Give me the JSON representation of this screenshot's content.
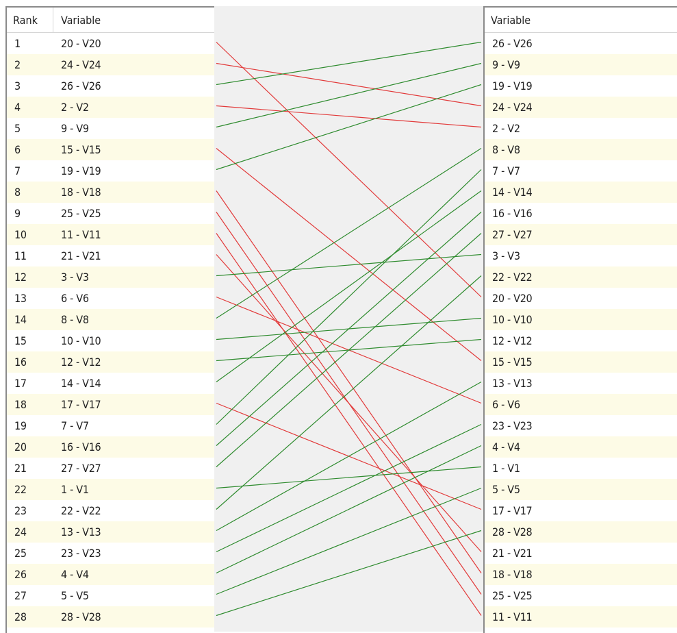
{
  "left_table": {
    "rank_header": "Rank",
    "variable_header": "Variable",
    "rows": [
      {
        "rank": "1",
        "variable": "20 - V20"
      },
      {
        "rank": "2",
        "variable": "24 - V24"
      },
      {
        "rank": "3",
        "variable": "26 - V26"
      },
      {
        "rank": "4",
        "variable": "2 - V2"
      },
      {
        "rank": "5",
        "variable": "9 - V9"
      },
      {
        "rank": "6",
        "variable": "15 - V15"
      },
      {
        "rank": "7",
        "variable": "19 - V19"
      },
      {
        "rank": "8",
        "variable": "18 - V18"
      },
      {
        "rank": "9",
        "variable": "25 - V25"
      },
      {
        "rank": "10",
        "variable": "11 - V11"
      },
      {
        "rank": "11",
        "variable": "21 - V21"
      },
      {
        "rank": "12",
        "variable": "3 - V3"
      },
      {
        "rank": "13",
        "variable": "6 - V6"
      },
      {
        "rank": "14",
        "variable": "8 - V8"
      },
      {
        "rank": "15",
        "variable": "10 - V10"
      },
      {
        "rank": "16",
        "variable": "12 - V12"
      },
      {
        "rank": "17",
        "variable": "14 - V14"
      },
      {
        "rank": "18",
        "variable": "17 - V17"
      },
      {
        "rank": "19",
        "variable": "7 - V7"
      },
      {
        "rank": "20",
        "variable": "16 - V16"
      },
      {
        "rank": "21",
        "variable": "27 - V27"
      },
      {
        "rank": "22",
        "variable": "1 - V1"
      },
      {
        "rank": "23",
        "variable": "22 - V22"
      },
      {
        "rank": "24",
        "variable": "13 - V13"
      },
      {
        "rank": "25",
        "variable": "23 - V23"
      },
      {
        "rank": "26",
        "variable": "4 - V4"
      },
      {
        "rank": "27",
        "variable": "5 - V5"
      },
      {
        "rank": "28",
        "variable": "28 - V28"
      }
    ]
  },
  "right_table": {
    "variable_header": "Variable",
    "rows": [
      {
        "variable": "26 - V26"
      },
      {
        "variable": "9 - V9"
      },
      {
        "variable": "19 - V19"
      },
      {
        "variable": "24 - V24"
      },
      {
        "variable": "2 - V2"
      },
      {
        "variable": "8 - V8"
      },
      {
        "variable": "7 - V7"
      },
      {
        "variable": "14 - V14"
      },
      {
        "variable": "16 - V16"
      },
      {
        "variable": "27 - V27"
      },
      {
        "variable": "3 - V3"
      },
      {
        "variable": "22 - V22"
      },
      {
        "variable": "20 - V20"
      },
      {
        "variable": "10 - V10"
      },
      {
        "variable": "12 - V12"
      },
      {
        "variable": "15 - V15"
      },
      {
        "variable": "13 - V13"
      },
      {
        "variable": "6 - V6"
      },
      {
        "variable": "23 - V23"
      },
      {
        "variable": "4 - V4"
      },
      {
        "variable": "1 - V1"
      },
      {
        "variable": "5 - V5"
      },
      {
        "variable": "17 - V17"
      },
      {
        "variable": "28 - V28"
      },
      {
        "variable": "21 - V21"
      },
      {
        "variable": "18 - V18"
      },
      {
        "variable": "25 - V25"
      },
      {
        "variable": "11 - V11"
      }
    ]
  },
  "colors": {
    "rank_up": "#2e8b2e",
    "rank_down": "#e23a3a",
    "middle_background": "#f0f0f0",
    "alt_row_background": "#fdfbe6"
  }
}
